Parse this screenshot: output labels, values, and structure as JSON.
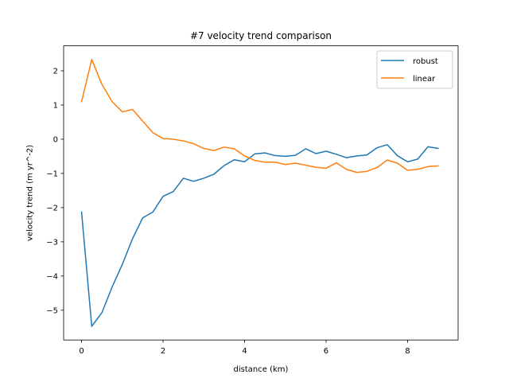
{
  "chart_data": {
    "type": "line",
    "title": "#7 velocity trend comparison",
    "xlabel": "distance (km)",
    "ylabel": "velocity trend (m yr^-2)",
    "xlim": [
      -0.44,
      9.24
    ],
    "ylim": [
      -5.87,
      2.73
    ],
    "xticks": [
      0,
      2,
      4,
      6,
      8
    ],
    "yticks": [
      -5,
      -4,
      -3,
      -2,
      -1,
      0,
      1,
      2
    ],
    "grid": false,
    "legend_position": "top-right",
    "x": [
      0.0,
      0.25,
      0.5,
      0.75,
      1.0,
      1.25,
      1.5,
      1.75,
      2.0,
      2.25,
      2.5,
      2.75,
      3.0,
      3.25,
      3.5,
      3.75,
      4.0,
      4.25,
      4.5,
      4.75,
      5.0,
      5.25,
      5.5,
      5.75,
      6.0,
      6.25,
      6.5,
      6.75,
      7.0,
      7.25,
      7.5,
      7.75,
      8.0,
      8.25,
      8.5,
      8.75
    ],
    "series": [
      {
        "name": "robust",
        "color": "#1f77b4",
        "values": [
          -2.13,
          -5.47,
          -5.07,
          -4.32,
          -3.66,
          -2.91,
          -2.3,
          -2.13,
          -1.67,
          -1.53,
          -1.14,
          -1.23,
          -1.14,
          -1.02,
          -0.77,
          -0.6,
          -0.66,
          -0.43,
          -0.4,
          -0.48,
          -0.5,
          -0.47,
          -0.28,
          -0.42,
          -0.35,
          -0.44,
          -0.54,
          -0.49,
          -0.46,
          -0.25,
          -0.16,
          -0.48,
          -0.66,
          -0.58,
          -0.22,
          -0.27
        ]
      },
      {
        "name": "linear",
        "color": "#ff7f0e",
        "values": [
          1.1,
          2.33,
          1.6,
          1.1,
          0.8,
          0.87,
          0.53,
          0.19,
          0.02,
          0.0,
          -0.05,
          -0.13,
          -0.27,
          -0.33,
          -0.23,
          -0.28,
          -0.49,
          -0.62,
          -0.67,
          -0.67,
          -0.74,
          -0.7,
          -0.76,
          -0.82,
          -0.85,
          -0.69,
          -0.88,
          -0.97,
          -0.94,
          -0.83,
          -0.61,
          -0.7,
          -0.91,
          -0.88,
          -0.8,
          -0.78
        ]
      }
    ]
  }
}
